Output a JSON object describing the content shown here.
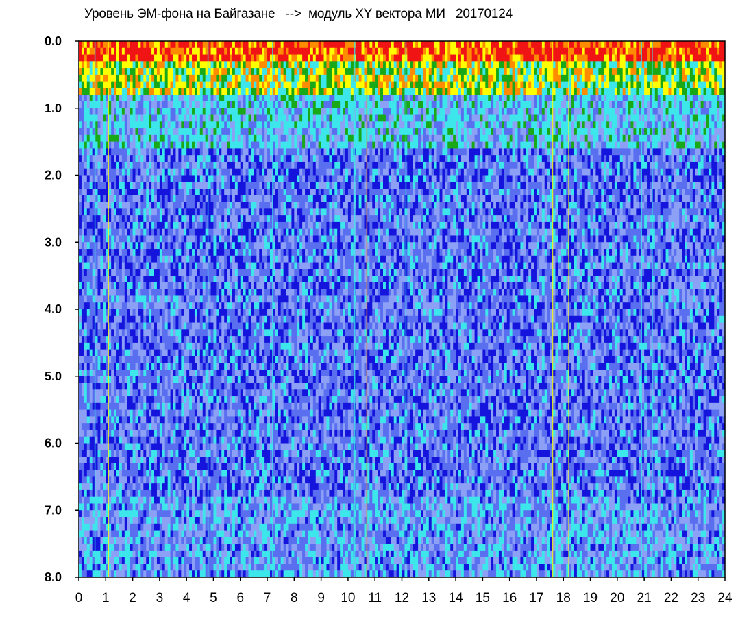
{
  "chart_data": {
    "type": "heatmap",
    "title": "Уровень ЭМ-фона на Байгазане   -->  модуль XY вектора МИ   20170124",
    "xlabel": "",
    "ylabel": "",
    "x_ticks": [
      "0",
      "1",
      "2",
      "3",
      "4",
      "5",
      "6",
      "7",
      "8",
      "9",
      "10",
      "11",
      "12",
      "13",
      "14",
      "15",
      "16",
      "17",
      "18",
      "19",
      "20",
      "21",
      "22",
      "23",
      "24"
    ],
    "y_ticks": [
      "0.0",
      "1.0",
      "2.0",
      "3.0",
      "4.0",
      "5.0",
      "6.0",
      "7.0",
      "8.0"
    ],
    "xlim": [
      0,
      24
    ],
    "ylim": [
      0,
      8
    ],
    "y_inverted": true,
    "grid": false,
    "colorscale": [
      "#1414dc",
      "#5a6ef0",
      "#8ca0f5",
      "#3ce6eb",
      "#18a818",
      "#ffff00",
      "#ff8c00",
      "#f01414"
    ],
    "description_bands": [
      {
        "y": [
          0.0,
          0.3
        ],
        "level": "high"
      },
      {
        "y": [
          0.3,
          0.8
        ],
        "level": "medium"
      },
      {
        "y": [
          0.8,
          1.6
        ],
        "level": "elevated"
      },
      {
        "y": [
          1.6,
          8.0
        ],
        "level": "low"
      }
    ]
  }
}
